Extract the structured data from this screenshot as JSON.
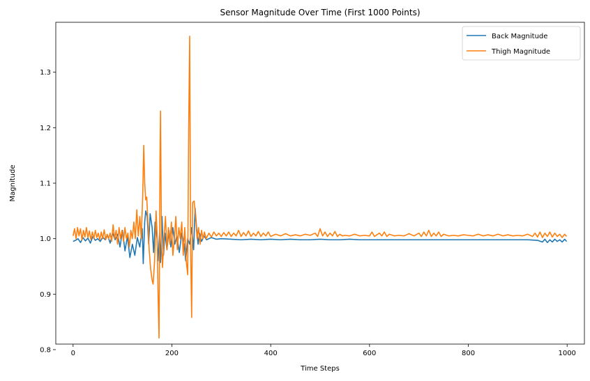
{
  "chart_data": {
    "type": "line",
    "title": "Sensor Magnitude Over Time (First 1000 Points)",
    "xlabel": "Time Steps",
    "ylabel": "Magnitude",
    "xlim": [
      -35,
      1035
    ],
    "ylim": [
      0.81,
      1.39
    ],
    "xticks": [
      0,
      200,
      400,
      600,
      800,
      1000
    ],
    "yticks": [
      0.8,
      0.9,
      1.0,
      1.1,
      1.2,
      1.3
    ],
    "legend_position": "top-right",
    "grid": false,
    "series": [
      {
        "name": "Back Magnitude",
        "color": "#1f77b4",
        "points": [
          [
            0,
            0.995
          ],
          [
            5,
            0.997
          ],
          [
            10,
            1.0
          ],
          [
            15,
            0.993
          ],
          [
            20,
            1.002
          ],
          [
            25,
            0.996
          ],
          [
            30,
            1.001
          ],
          [
            35,
            0.992
          ],
          [
            40,
            1.004
          ],
          [
            45,
            0.997
          ],
          [
            50,
            1.0
          ],
          [
            55,
            0.995
          ],
          [
            60,
            1.003
          ],
          [
            65,
            0.998
          ],
          [
            70,
            1.006
          ],
          [
            75,
            0.992
          ],
          [
            80,
            1.01
          ],
          [
            85,
            0.998
          ],
          [
            90,
            1.008
          ],
          [
            95,
            0.985
          ],
          [
            100,
            1.015
          ],
          [
            105,
            0.978
          ],
          [
            110,
            1.004
          ],
          [
            115,
            0.966
          ],
          [
            120,
            0.99
          ],
          [
            125,
            0.97
          ],
          [
            130,
            1.002
          ],
          [
            135,
            0.985
          ],
          [
            140,
            1.018
          ],
          [
            142,
            0.955
          ],
          [
            145,
            1.03
          ],
          [
            147,
            1.05
          ],
          [
            150,
            1.04
          ],
          [
            153,
            0.99
          ],
          [
            156,
            1.045
          ],
          [
            160,
            1.02
          ],
          [
            163,
            0.975
          ],
          [
            166,
            1.03
          ],
          [
            170,
            1.0
          ],
          [
            172,
            0.96
          ],
          [
            175,
            1.01
          ],
          [
            177,
            0.957
          ],
          [
            180,
            1.04
          ],
          [
            183,
            0.97
          ],
          [
            186,
            1.01
          ],
          [
            190,
            0.98
          ],
          [
            194,
            1.015
          ],
          [
            198,
            0.985
          ],
          [
            202,
            1.02
          ],
          [
            206,
            0.99
          ],
          [
            210,
            1.005
          ],
          [
            215,
            0.975
          ],
          [
            220,
            1.01
          ],
          [
            225,
            0.99
          ],
          [
            228,
            0.96
          ],
          [
            232,
            1.0
          ],
          [
            236,
            0.99
          ],
          [
            240,
            1.02
          ],
          [
            244,
            0.98
          ],
          [
            247,
            1.055
          ],
          [
            250,
            1.02
          ],
          [
            253,
            0.99
          ],
          [
            256,
            1.01
          ],
          [
            260,
            0.995
          ],
          [
            265,
            1.005
          ],
          [
            270,
            0.998
          ],
          [
            280,
            1.002
          ],
          [
            290,
            0.999
          ],
          [
            300,
            1.0
          ],
          [
            320,
            0.999
          ],
          [
            340,
            0.998
          ],
          [
            360,
            0.999
          ],
          [
            380,
            0.998
          ],
          [
            400,
            0.999
          ],
          [
            420,
            0.998
          ],
          [
            440,
            0.999
          ],
          [
            460,
            0.998
          ],
          [
            480,
            0.998
          ],
          [
            500,
            0.999
          ],
          [
            520,
            0.998
          ],
          [
            540,
            0.998
          ],
          [
            560,
            0.999
          ],
          [
            580,
            0.998
          ],
          [
            600,
            0.998
          ],
          [
            620,
            0.998
          ],
          [
            640,
            0.998
          ],
          [
            660,
            0.998
          ],
          [
            680,
            0.998
          ],
          [
            700,
            0.998
          ],
          [
            720,
            0.998
          ],
          [
            740,
            0.998
          ],
          [
            760,
            0.998
          ],
          [
            780,
            0.998
          ],
          [
            800,
            0.998
          ],
          [
            820,
            0.998
          ],
          [
            840,
            0.998
          ],
          [
            860,
            0.998
          ],
          [
            880,
            0.998
          ],
          [
            900,
            0.998
          ],
          [
            920,
            0.998
          ],
          [
            940,
            0.997
          ],
          [
            950,
            0.994
          ],
          [
            955,
            0.999
          ],
          [
            960,
            0.993
          ],
          [
            965,
            0.998
          ],
          [
            970,
            0.994
          ],
          [
            975,
            0.999
          ],
          [
            980,
            0.995
          ],
          [
            985,
            0.998
          ],
          [
            990,
            0.994
          ],
          [
            995,
            0.999
          ],
          [
            999,
            0.995
          ]
        ]
      },
      {
        "name": "Thigh Magnitude",
        "color": "#ff7f0e",
        "points": [
          [
            0,
            1.005
          ],
          [
            3,
            1.018
          ],
          [
            6,
            1.0
          ],
          [
            9,
            1.02
          ],
          [
            12,
            1.005
          ],
          [
            15,
            1.018
          ],
          [
            18,
            0.998
          ],
          [
            21,
            1.015
          ],
          [
            24,
            1.003
          ],
          [
            27,
            1.02
          ],
          [
            30,
            1.002
          ],
          [
            33,
            1.014
          ],
          [
            36,
            0.998
          ],
          [
            39,
            1.012
          ],
          [
            42,
            1.0
          ],
          [
            45,
            1.015
          ],
          [
            48,
            1.002
          ],
          [
            51,
            1.01
          ],
          [
            54,
            0.998
          ],
          [
            57,
            1.012
          ],
          [
            60,
            1.0
          ],
          [
            63,
            1.016
          ],
          [
            66,
            0.998
          ],
          [
            69,
            1.008
          ],
          [
            72,
            1.0
          ],
          [
            75,
            1.01
          ],
          [
            78,
            0.995
          ],
          [
            81,
            1.025
          ],
          [
            84,
            1.0
          ],
          [
            87,
            1.015
          ],
          [
            90,
            0.99
          ],
          [
            93,
            1.02
          ],
          [
            96,
            1.0
          ],
          [
            99,
            1.015
          ],
          [
            102,
            0.995
          ],
          [
            105,
            1.02
          ],
          [
            108,
            1.0
          ],
          [
            111,
            1.01
          ],
          [
            114,
            0.985
          ],
          [
            117,
            1.015
          ],
          [
            120,
            1.0
          ],
          [
            123,
            1.03
          ],
          [
            126,
            1.0
          ],
          [
            129,
            1.052
          ],
          [
            132,
            1.005
          ],
          [
            135,
            1.04
          ],
          [
            138,
            1.0
          ],
          [
            141,
            1.08
          ],
          [
            143,
            1.168
          ],
          [
            145,
            1.1
          ],
          [
            147,
            1.07
          ],
          [
            149,
            1.075
          ],
          [
            151,
            1.04
          ],
          [
            154,
            0.98
          ],
          [
            157,
            0.945
          ],
          [
            160,
            0.925
          ],
          [
            162,
            0.918
          ],
          [
            165,
            0.96
          ],
          [
            168,
            1.05
          ],
          [
            170,
            1.01
          ],
          [
            172,
            0.9
          ],
          [
            174,
            0.821
          ],
          [
            176,
            1.15
          ],
          [
            177,
            1.23
          ],
          [
            179,
            0.99
          ],
          [
            181,
            0.948
          ],
          [
            184,
            1.0
          ],
          [
            187,
            1.04
          ],
          [
            190,
            0.98
          ],
          [
            193,
            1.02
          ],
          [
            196,
            0.99
          ],
          [
            199,
            1.03
          ],
          [
            202,
            0.97
          ],
          [
            205,
            1.0
          ],
          [
            208,
            1.04
          ],
          [
            211,
            0.98
          ],
          [
            214,
            1.02
          ],
          [
            217,
            1.0
          ],
          [
            220,
            1.03
          ],
          [
            223,
            0.97
          ],
          [
            226,
            1.02
          ],
          [
            229,
            0.96
          ],
          [
            232,
            0.935
          ],
          [
            234,
            1.2
          ],
          [
            236,
            1.365
          ],
          [
            238,
            0.98
          ],
          [
            240,
            0.858
          ],
          [
            242,
            1.065
          ],
          [
            245,
            1.068
          ],
          [
            248,
            1.04
          ],
          [
            251,
            1.0
          ],
          [
            254,
            1.02
          ],
          [
            257,
            0.99
          ],
          [
            260,
            1.015
          ],
          [
            263,
            1.0
          ],
          [
            266,
            1.012
          ],
          [
            269,
            1.0
          ],
          [
            275,
            1.01
          ],
          [
            280,
            1.003
          ],
          [
            285,
            1.012
          ],
          [
            290,
            1.005
          ],
          [
            295,
            1.01
          ],
          [
            300,
            1.004
          ],
          [
            305,
            1.011
          ],
          [
            310,
            1.005
          ],
          [
            315,
            1.012
          ],
          [
            320,
            1.004
          ],
          [
            325,
            1.01
          ],
          [
            330,
            1.005
          ],
          [
            335,
            1.015
          ],
          [
            340,
            1.004
          ],
          [
            345,
            1.011
          ],
          [
            350,
            1.005
          ],
          [
            355,
            1.014
          ],
          [
            360,
            1.004
          ],
          [
            365,
            1.01
          ],
          [
            370,
            1.005
          ],
          [
            375,
            1.013
          ],
          [
            380,
            1.004
          ],
          [
            385,
            1.01
          ],
          [
            390,
            1.005
          ],
          [
            395,
            1.012
          ],
          [
            400,
            1.004
          ],
          [
            410,
            1.008
          ],
          [
            420,
            1.005
          ],
          [
            430,
            1.009
          ],
          [
            440,
            1.005
          ],
          [
            450,
            1.007
          ],
          [
            460,
            1.005
          ],
          [
            470,
            1.008
          ],
          [
            480,
            1.006
          ],
          [
            490,
            1.01
          ],
          [
            495,
            1.004
          ],
          [
            500,
            1.018
          ],
          [
            505,
            1.005
          ],
          [
            510,
            1.012
          ],
          [
            515,
            1.004
          ],
          [
            520,
            1.01
          ],
          [
            525,
            1.005
          ],
          [
            530,
            1.013
          ],
          [
            535,
            1.004
          ],
          [
            540,
            1.008
          ],
          [
            545,
            1.005
          ],
          [
            550,
            1.006
          ],
          [
            560,
            1.005
          ],
          [
            570,
            1.008
          ],
          [
            580,
            1.005
          ],
          [
            590,
            1.006
          ],
          [
            600,
            1.005
          ],
          [
            605,
            1.012
          ],
          [
            610,
            1.004
          ],
          [
            620,
            1.01
          ],
          [
            625,
            1.005
          ],
          [
            630,
            1.012
          ],
          [
            635,
            1.004
          ],
          [
            640,
            1.008
          ],
          [
            650,
            1.005
          ],
          [
            660,
            1.006
          ],
          [
            670,
            1.005
          ],
          [
            680,
            1.009
          ],
          [
            690,
            1.005
          ],
          [
            700,
            1.01
          ],
          [
            705,
            1.004
          ],
          [
            710,
            1.012
          ],
          [
            715,
            1.005
          ],
          [
            720,
            1.015
          ],
          [
            725,
            1.004
          ],
          [
            730,
            1.01
          ],
          [
            735,
            1.005
          ],
          [
            740,
            1.012
          ],
          [
            745,
            1.004
          ],
          [
            750,
            1.008
          ],
          [
            760,
            1.005
          ],
          [
            770,
            1.006
          ],
          [
            780,
            1.005
          ],
          [
            790,
            1.007
          ],
          [
            800,
            1.006
          ],
          [
            810,
            1.005
          ],
          [
            820,
            1.008
          ],
          [
            830,
            1.005
          ],
          [
            840,
            1.007
          ],
          [
            850,
            1.005
          ],
          [
            860,
            1.008
          ],
          [
            870,
            1.005
          ],
          [
            880,
            1.007
          ],
          [
            890,
            1.005
          ],
          [
            900,
            1.006
          ],
          [
            910,
            1.005
          ],
          [
            920,
            1.008
          ],
          [
            930,
            1.004
          ],
          [
            935,
            1.01
          ],
          [
            940,
            1.003
          ],
          [
            945,
            1.012
          ],
          [
            950,
            1.002
          ],
          [
            955,
            1.01
          ],
          [
            960,
            1.004
          ],
          [
            965,
            1.012
          ],
          [
            970,
            1.003
          ],
          [
            975,
            1.01
          ],
          [
            980,
            1.004
          ],
          [
            985,
            1.008
          ],
          [
            990,
            1.002
          ],
          [
            995,
            1.008
          ],
          [
            999,
            1.004
          ]
        ]
      }
    ]
  }
}
